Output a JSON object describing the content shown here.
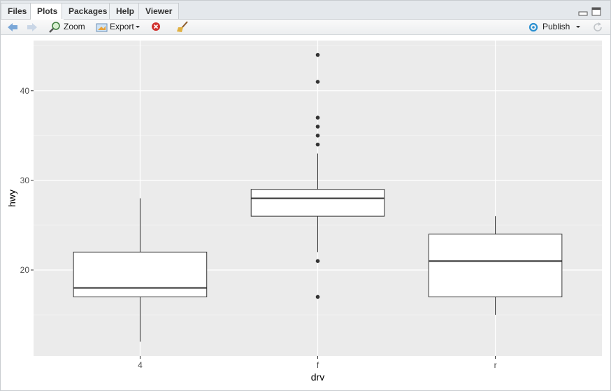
{
  "tabs": [
    "Files",
    "Plots",
    "Packages",
    "Help",
    "Viewer"
  ],
  "toolbar": {
    "zoom": "Zoom",
    "export": "Export",
    "publish": "Publish"
  },
  "chart_data": {
    "type": "boxplot",
    "x_label": "drv",
    "y_label": "hwy",
    "categories": [
      "4",
      "f",
      "r"
    ],
    "boxes": [
      {
        "whisker_low": 12,
        "q1": 17,
        "median": 18,
        "q3": 22,
        "whisker_high": 28,
        "outliers": []
      },
      {
        "whisker_low": 22,
        "q1": 26,
        "median": 28,
        "q3": 29,
        "whisker_high": 33,
        "outliers": [
          44,
          41,
          37,
          36,
          35,
          34,
          21,
          17
        ]
      },
      {
        "whisker_low": 15,
        "q1": 17,
        "median": 21,
        "q3": 24,
        "whisker_high": 26,
        "outliers": []
      }
    ],
    "ylim": [
      10.4,
      45.6
    ],
    "yticks": [
      20,
      30,
      40
    ],
    "y_minor_grid": [
      15,
      25,
      35,
      45
    ],
    "grid": true,
    "box_fill": "#ffffff",
    "line_color": "#333333",
    "panel_color": "#ebebeb"
  }
}
